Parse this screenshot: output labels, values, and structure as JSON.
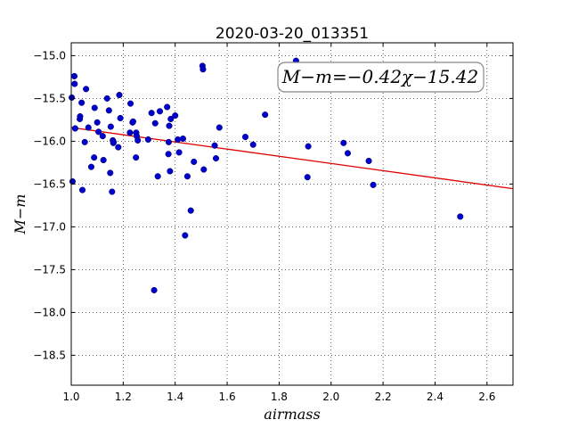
{
  "chart_data": {
    "type": "scatter",
    "title": "2020-03-20_013351",
    "xlabel": "airmass",
    "ylabel": "M−m",
    "xlim": [
      1.0,
      2.7
    ],
    "ylim": [
      -18.85,
      -14.85
    ],
    "xticks": [
      "1.0",
      "1.2",
      "1.4",
      "1.6",
      "1.8",
      "2.0",
      "2.2",
      "2.4",
      "2.6"
    ],
    "yticks": [
      "−15.0",
      "−15.5",
      "−16.0",
      "−16.5",
      "−17.0",
      "−17.5",
      "−18.0",
      "−18.5"
    ],
    "grid": true,
    "point_color": "#0000cc",
    "fit_color": "#dd0000",
    "annotation": "M−m=−0.42χ−15.42",
    "fit": {
      "slope": -0.42,
      "intercept": -15.42
    },
    "points": [
      [
        1.002,
        -15.49
      ],
      [
        1.005,
        -16.47
      ],
      [
        1.012,
        -15.24
      ],
      [
        1.013,
        -15.33
      ],
      [
        1.015,
        -15.85
      ],
      [
        1.033,
        -15.74
      ],
      [
        1.034,
        -15.71
      ],
      [
        1.04,
        -15.55
      ],
      [
        1.043,
        -16.57
      ],
      [
        1.052,
        -16.01
      ],
      [
        1.057,
        -15.39
      ],
      [
        1.066,
        -15.84
      ],
      [
        1.077,
        -16.3
      ],
      [
        1.088,
        -16.19
      ],
      [
        1.09,
        -15.61
      ],
      [
        1.1,
        -15.78
      ],
      [
        1.105,
        -15.89
      ],
      [
        1.121,
        -15.94
      ],
      [
        1.124,
        -16.22
      ],
      [
        1.138,
        -15.5
      ],
      [
        1.145,
        -15.64
      ],
      [
        1.15,
        -16.37
      ],
      [
        1.152,
        -15.83
      ],
      [
        1.157,
        -16.59
      ],
      [
        1.16,
        -15.99
      ],
      [
        1.162,
        -16.02
      ],
      [
        1.163,
        -16.01
      ],
      [
        1.181,
        -16.07
      ],
      [
        1.185,
        -15.46
      ],
      [
        1.189,
        -15.73
      ],
      [
        1.226,
        -15.9
      ],
      [
        1.228,
        -15.56
      ],
      [
        1.236,
        -15.78
      ],
      [
        1.238,
        -15.77
      ],
      [
        1.249,
        -16.19
      ],
      [
        1.25,
        -15.9
      ],
      [
        1.252,
        -15.94
      ],
      [
        1.256,
        -15.99
      ],
      [
        1.296,
        -15.98
      ],
      [
        1.309,
        -15.67
      ],
      [
        1.319,
        -17.74
      ],
      [
        1.323,
        -15.79
      ],
      [
        1.333,
        -16.41
      ],
      [
        1.341,
        -15.65
      ],
      [
        1.369,
        -15.6
      ],
      [
        1.374,
        -16.15
      ],
      [
        1.375,
        -16.01
      ],
      [
        1.377,
        -15.82
      ],
      [
        1.38,
        -16.35
      ],
      [
        1.383,
        -15.74
      ],
      [
        1.4,
        -15.7
      ],
      [
        1.41,
        -15.98
      ],
      [
        1.415,
        -16.13
      ],
      [
        1.43,
        -15.97
      ],
      [
        1.438,
        -17.1
      ],
      [
        1.447,
        -16.41
      ],
      [
        1.46,
        -16.81
      ],
      [
        1.472,
        -16.24
      ],
      [
        1.505,
        -15.12
      ],
      [
        1.507,
        -15.16
      ],
      [
        1.51,
        -16.33
      ],
      [
        1.552,
        -16.05
      ],
      [
        1.557,
        -16.2
      ],
      [
        1.57,
        -15.84
      ],
      [
        1.67,
        -15.95
      ],
      [
        1.7,
        -16.04
      ],
      [
        1.746,
        -15.69
      ],
      [
        1.865,
        -15.06
      ],
      [
        1.909,
        -16.42
      ],
      [
        1.912,
        -16.06
      ],
      [
        2.048,
        -16.02
      ],
      [
        2.064,
        -16.14
      ],
      [
        2.145,
        -16.23
      ],
      [
        2.162,
        -16.51
      ],
      [
        2.497,
        -16.88
      ]
    ]
  }
}
